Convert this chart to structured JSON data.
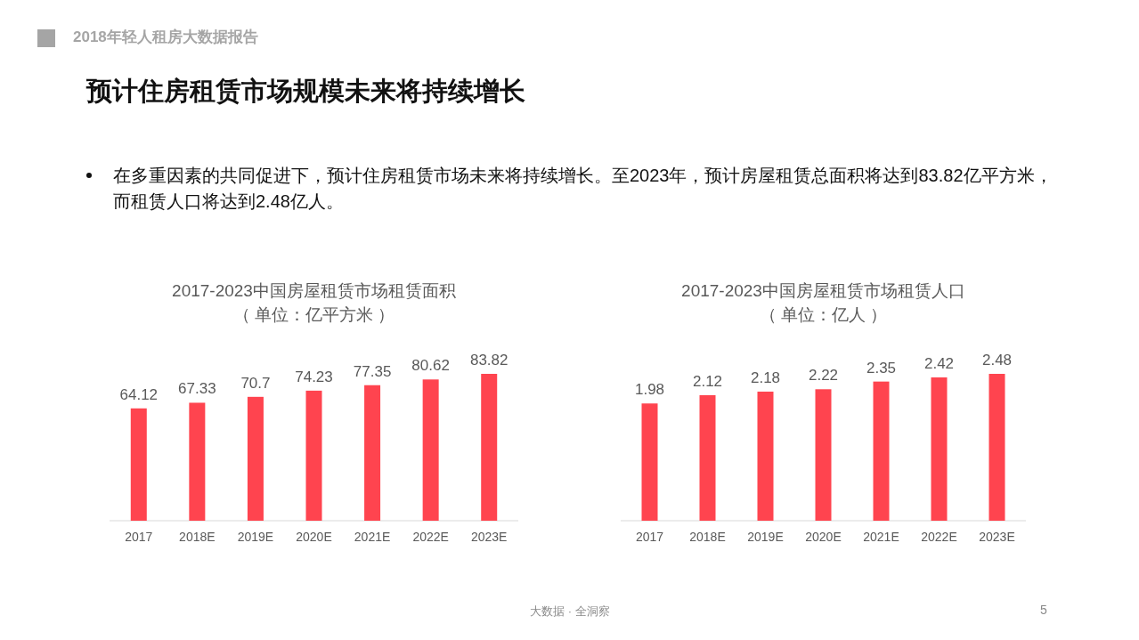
{
  "chart_data": [
    {
      "type": "bar",
      "title": "2017-2023中国房屋租赁市场租赁面积",
      "subtitle": "（ 单位：亿平方米 ）",
      "categories": [
        "2017",
        "2018E",
        "2019E",
        "2020E",
        "2021E",
        "2022E",
        "2023E"
      ],
      "values": [
        64.12,
        67.33,
        70.7,
        74.23,
        77.35,
        80.62,
        83.82
      ],
      "color": "#ff444f",
      "data_labels": true,
      "annotations": [
        "2018年轻人租房大数据报告",
        "预计住房租赁市场规模未来将持续增长",
        "在多重因素的共同促进下，预计住房租赁市场未来将持续增长。至2023年，预计房屋租赁总面积将达到83.82亿平方米，而租赁人口将达到2.48亿人。",
        "大数据 · 全洞察",
        "5"
      ]
    },
    {
      "type": "bar",
      "title": "2017-2023中国房屋租赁市场租赁人口",
      "subtitle": "（ 单位：亿人 ）",
      "categories": [
        "2017",
        "2018E",
        "2019E",
        "2020E",
        "2021E",
        "2022E",
        "2023E"
      ],
      "values": [
        1.98,
        2.12,
        2.18,
        2.22,
        2.35,
        2.42,
        2.48
      ],
      "color": "#ff444f",
      "data_labels": true
    }
  ]
}
